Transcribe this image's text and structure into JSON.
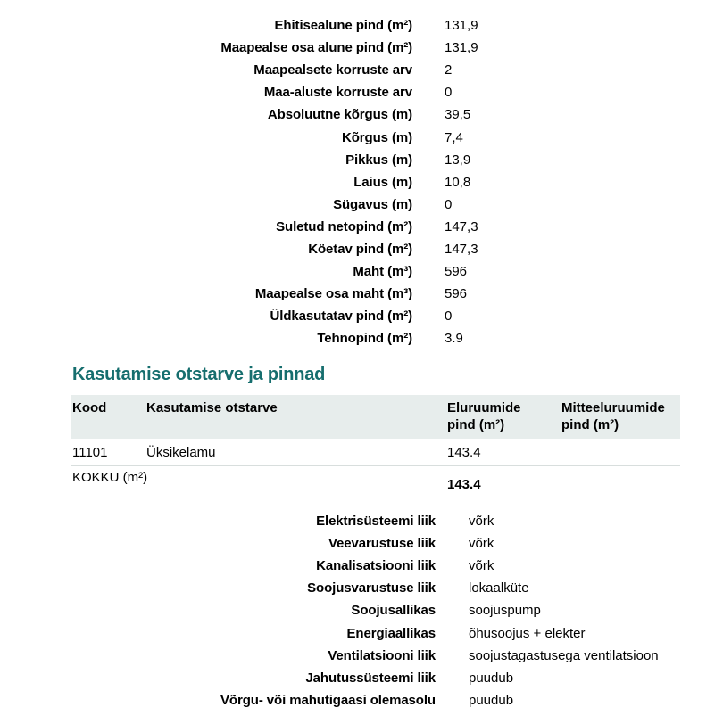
{
  "top_details": {
    "rows": [
      {
        "label": "Ehitisealune pind (m²)",
        "value": "131,9"
      },
      {
        "label": "Maapealse osa alune pind (m²)",
        "value": "131,9"
      },
      {
        "label": "Maapealsete korruste arv",
        "value": "2"
      },
      {
        "label": "Maa-aluste korruste arv",
        "value": "0"
      },
      {
        "label": "Absoluutne kõrgus (m)",
        "value": "39,5"
      },
      {
        "label": "Kõrgus (m)",
        "value": "7,4"
      },
      {
        "label": "Pikkus (m)",
        "value": "13,9"
      },
      {
        "label": "Laius (m)",
        "value": "10,8"
      },
      {
        "label": "Sügavus (m)",
        "value": "0"
      },
      {
        "label": "Suletud netopind (m²)",
        "value": "147,3"
      },
      {
        "label": "Köetav pind (m²)",
        "value": "147,3"
      },
      {
        "label": "Maht (m³)",
        "value": "596"
      },
      {
        "label": "Maapealse osa maht (m³)",
        "value": "596"
      },
      {
        "label": "Üldkasutatav pind (m²)",
        "value": "0"
      },
      {
        "label": "Tehnopind (m²)",
        "value": "3.9"
      }
    ]
  },
  "section": {
    "title": "Kasutamise otstarve ja pinnad",
    "title_color": "#166e6e",
    "header_bg": "#e7edec",
    "table": {
      "columns": [
        "Kood",
        "Kasutamise otstarve",
        "Eluruumide pind (m²)",
        "Mitteeluruumide pind (m²)"
      ],
      "rows": [
        {
          "kood": "11101",
          "otstarve": "Üksikelamu",
          "eluruumide": "143.4",
          "mitteeluruumide": ""
        }
      ],
      "total_label": "KOKKU (m²)",
      "total_value": "143.4"
    }
  },
  "utilities": {
    "rows": [
      {
        "label": "Elektrisüsteemi liik",
        "value": "võrk"
      },
      {
        "label": "Veevarustuse liik",
        "value": "võrk"
      },
      {
        "label": "Kanalisatsiooni liik",
        "value": "võrk"
      },
      {
        "label": "Soojusvarustuse liik",
        "value": "lokaalküte"
      },
      {
        "label": "Soojusallikas",
        "value": "soojuspump"
      },
      {
        "label": "Energiaallikas",
        "value": "õhusoojus + elekter"
      },
      {
        "label": "Ventilatsiooni liik",
        "value": "soojustagastusega ventilatsioon"
      },
      {
        "label": "Jahutussüsteemi liik",
        "value": "puudub"
      },
      {
        "label": "Võrgu- või mahutigaasi olemasolu",
        "value": "puudub"
      }
    ]
  }
}
